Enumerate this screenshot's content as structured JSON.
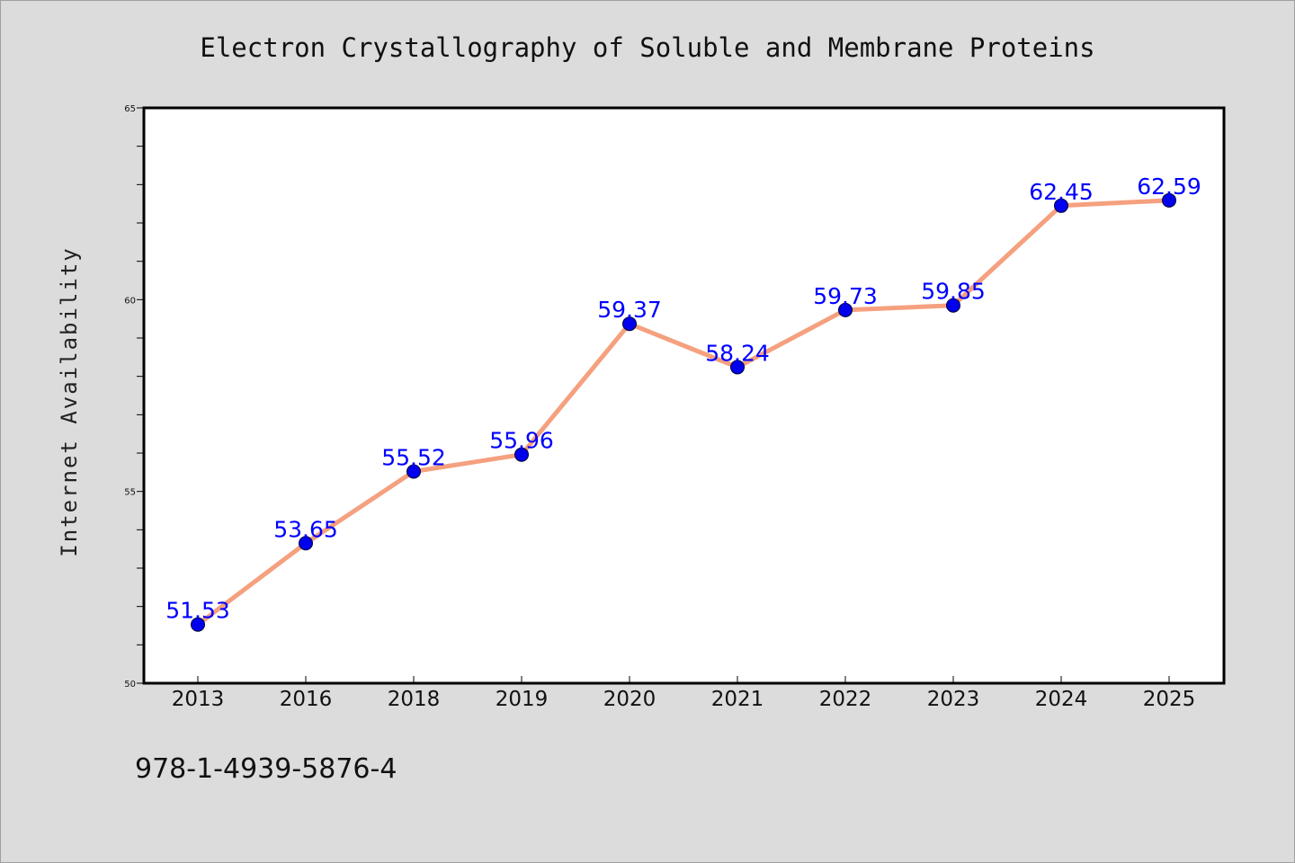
{
  "colors": {
    "background": "#dcdcdc",
    "plot_background": "#ffffff",
    "line": "#f5a07e",
    "marker": "#0000ee",
    "data_label": "#0000ff"
  },
  "footer": {
    "isbn": "978-1-4939-5876-4"
  },
  "chart_data": {
    "type": "line",
    "title": "Electron Crystallography of Soluble and Membrane Proteins",
    "xlabel": "",
    "ylabel": "Internet Availability",
    "categories": [
      "2013",
      "2016",
      "2018",
      "2019",
      "2020",
      "2021",
      "2022",
      "2023",
      "2024",
      "2025"
    ],
    "series": [
      {
        "values": [
          51.53,
          53.65,
          55.52,
          55.96,
          59.37,
          58.24,
          59.73,
          59.85,
          62.45,
          62.59
        ],
        "labels": [
          "51.53",
          "53.65",
          "55.52",
          "55.96",
          "59.37",
          "58.24",
          "59.73",
          "59.85",
          "62.45",
          "62.59"
        ]
      }
    ],
    "ylim": [
      50,
      65
    ],
    "yticks": [
      "50",
      "55",
      "60",
      "65"
    ],
    "y_minor_step": 1,
    "grid": false,
    "legend": "none",
    "markers": "filled circles",
    "data_labels": true
  }
}
